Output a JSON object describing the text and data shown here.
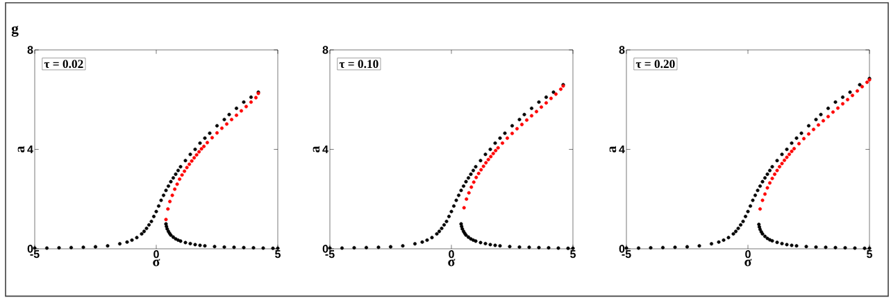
{
  "chart_data": [
    {
      "type": "scatter",
      "title": "g",
      "xlabel": "σ",
      "ylabel": "a",
      "xlim": [
        -5,
        5
      ],
      "ylim": [
        0,
        8
      ],
      "xticks": [
        -5,
        0,
        5
      ],
      "yticks": [
        0,
        4,
        8
      ],
      "marker": "circle",
      "annotations": [
        "τ = 0.02"
      ],
      "series": [
        {
          "type": "scatter",
          "color": "#000000",
          "x": [
            -5,
            -4.5,
            -4,
            -3.5,
            -3,
            -2.5,
            -2,
            -1.5,
            -1.2,
            -1,
            -0.8,
            -0.6,
            -0.5,
            -0.4,
            -0.3,
            -0.2,
            -0.1,
            0,
            0.1,
            0.2,
            0.3,
            0.4,
            0.5,
            0.6,
            0.7,
            0.8,
            0.9,
            1.0,
            1.2,
            1.4,
            1.6,
            1.8,
            2.0,
            2.2,
            2.5,
            2.8,
            3.0,
            3.3,
            3.6,
            3.9,
            4.2
          ],
          "values": [
            0.03,
            0.03,
            0.04,
            0.05,
            0.06,
            0.08,
            0.12,
            0.2,
            0.27,
            0.35,
            0.45,
            0.6,
            0.7,
            0.82,
            0.96,
            1.1,
            1.3,
            1.5,
            1.72,
            1.95,
            2.15,
            2.35,
            2.52,
            2.7,
            2.85,
            3.0,
            3.15,
            3.3,
            3.55,
            3.8,
            4.0,
            4.25,
            4.45,
            4.65,
            4.95,
            5.2,
            5.4,
            5.65,
            5.9,
            6.1,
            6.3
          ]
        },
        {
          "type": "scatter",
          "color": "#000000",
          "x": [
            0.4,
            0.42,
            0.45,
            0.5,
            0.55,
            0.6,
            0.7,
            0.8,
            0.9,
            1.0,
            1.2,
            1.4,
            1.6,
            1.8,
            2.0,
            2.4,
            2.8,
            3.2,
            3.6,
            4.0,
            4.4,
            4.8,
            5.0
          ],
          "values": [
            1.0,
            0.9,
            0.8,
            0.7,
            0.62,
            0.55,
            0.47,
            0.4,
            0.35,
            0.31,
            0.25,
            0.21,
            0.17,
            0.14,
            0.12,
            0.09,
            0.07,
            0.06,
            0.05,
            0.04,
            0.03,
            0.02,
            0.02
          ]
        },
        {
          "type": "scatter",
          "color": "#ff0000",
          "x": [
            0.4,
            0.48,
            0.56,
            0.66,
            0.76,
            0.86,
            0.96,
            1.06,
            1.16,
            1.26,
            1.36,
            1.46,
            1.56,
            1.66,
            1.76,
            1.86,
            1.96,
            2.1,
            2.3,
            2.5,
            2.7,
            2.9,
            3.1,
            3.3,
            3.5,
            3.7,
            3.9,
            4.1,
            4.2
          ],
          "values": [
            1.18,
            1.6,
            1.9,
            2.15,
            2.4,
            2.6,
            2.8,
            2.97,
            3.12,
            3.27,
            3.4,
            3.53,
            3.66,
            3.78,
            3.9,
            4.02,
            4.12,
            4.27,
            4.47,
            4.66,
            4.85,
            5.02,
            5.2,
            5.37,
            5.55,
            5.72,
            5.9,
            6.08,
            6.25
          ]
        }
      ]
    },
    {
      "type": "scatter",
      "xlabel": "σ",
      "ylabel": "a",
      "xlim": [
        -5,
        5
      ],
      "ylim": [
        0,
        8
      ],
      "xticks": [
        -5,
        0,
        5
      ],
      "yticks": [
        0,
        4,
        8
      ],
      "marker": "circle",
      "annotations": [
        "τ = 0.10"
      ],
      "series": [
        {
          "type": "scatter",
          "color": "#000000",
          "x": [
            -5,
            -4.5,
            -4,
            -3.5,
            -3,
            -2.5,
            -2,
            -1.5,
            -1.2,
            -1,
            -0.8,
            -0.6,
            -0.5,
            -0.4,
            -0.3,
            -0.2,
            -0.1,
            0,
            0.1,
            0.2,
            0.3,
            0.4,
            0.5,
            0.6,
            0.7,
            0.8,
            0.9,
            1.0,
            1.2,
            1.4,
            1.6,
            1.8,
            2.0,
            2.2,
            2.5,
            2.8,
            3.0,
            3.3,
            3.6,
            3.9,
            4.2,
            4.6
          ],
          "values": [
            0.03,
            0.03,
            0.04,
            0.05,
            0.06,
            0.08,
            0.12,
            0.2,
            0.27,
            0.35,
            0.45,
            0.6,
            0.7,
            0.82,
            0.96,
            1.1,
            1.3,
            1.5,
            1.72,
            1.95,
            2.15,
            2.35,
            2.52,
            2.7,
            2.85,
            3.0,
            3.15,
            3.3,
            3.55,
            3.8,
            4.0,
            4.25,
            4.45,
            4.65,
            4.95,
            5.2,
            5.4,
            5.65,
            5.9,
            6.1,
            6.3,
            6.6
          ]
        },
        {
          "type": "scatter",
          "color": "#000000",
          "x": [
            0.4,
            0.42,
            0.45,
            0.5,
            0.55,
            0.6,
            0.7,
            0.8,
            0.9,
            1.0,
            1.2,
            1.4,
            1.6,
            1.8,
            2.0,
            2.4,
            2.8,
            3.2,
            3.6,
            4.0,
            4.4,
            4.8,
            5.0
          ],
          "values": [
            1.0,
            0.9,
            0.8,
            0.7,
            0.62,
            0.55,
            0.47,
            0.4,
            0.35,
            0.31,
            0.25,
            0.21,
            0.17,
            0.14,
            0.12,
            0.09,
            0.07,
            0.06,
            0.05,
            0.04,
            0.03,
            0.02,
            0.02
          ]
        },
        {
          "type": "scatter",
          "color": "#ff0000",
          "x": [
            0.52,
            0.62,
            0.72,
            0.82,
            0.92,
            1.02,
            1.12,
            1.22,
            1.32,
            1.42,
            1.52,
            1.62,
            1.72,
            1.82,
            1.92,
            2.1,
            2.3,
            2.5,
            2.7,
            2.9,
            3.1,
            3.3,
            3.5,
            3.7,
            3.9,
            4.1,
            4.3,
            4.5,
            4.6
          ],
          "values": [
            1.65,
            2.0,
            2.25,
            2.48,
            2.68,
            2.87,
            3.03,
            3.18,
            3.32,
            3.46,
            3.59,
            3.71,
            3.83,
            3.95,
            4.06,
            4.25,
            4.45,
            4.64,
            4.83,
            5.0,
            5.18,
            5.35,
            5.52,
            5.7,
            5.87,
            6.05,
            6.22,
            6.42,
            6.55
          ]
        }
      ]
    },
    {
      "type": "scatter",
      "xlabel": "σ",
      "ylabel": "a",
      "xlim": [
        -5,
        5
      ],
      "ylim": [
        0,
        8
      ],
      "xticks": [
        -5,
        0,
        5
      ],
      "yticks": [
        0,
        4,
        8
      ],
      "marker": "circle",
      "annotations": [
        "τ = 0.20"
      ],
      "series": [
        {
          "type": "scatter",
          "color": "#000000",
          "x": [
            -5,
            -4.5,
            -4,
            -3.5,
            -3,
            -2.5,
            -2,
            -1.5,
            -1.2,
            -1,
            -0.8,
            -0.6,
            -0.5,
            -0.4,
            -0.3,
            -0.2,
            -0.1,
            0,
            0.1,
            0.2,
            0.3,
            0.4,
            0.5,
            0.6,
            0.7,
            0.8,
            0.9,
            1.0,
            1.2,
            1.4,
            1.6,
            1.8,
            2.0,
            2.2,
            2.5,
            2.8,
            3.0,
            3.3,
            3.6,
            3.9,
            4.2,
            4.6,
            5.0
          ],
          "values": [
            0.03,
            0.03,
            0.04,
            0.05,
            0.06,
            0.08,
            0.12,
            0.2,
            0.27,
            0.35,
            0.45,
            0.6,
            0.7,
            0.82,
            0.96,
            1.1,
            1.3,
            1.5,
            1.72,
            1.95,
            2.15,
            2.35,
            2.52,
            2.7,
            2.85,
            3.0,
            3.15,
            3.3,
            3.55,
            3.8,
            4.0,
            4.25,
            4.45,
            4.65,
            4.95,
            5.2,
            5.4,
            5.65,
            5.9,
            6.1,
            6.3,
            6.6,
            6.85
          ]
        },
        {
          "type": "scatter",
          "color": "#000000",
          "x": [
            0.45,
            0.47,
            0.5,
            0.55,
            0.6,
            0.7,
            0.8,
            0.9,
            1.0,
            1.2,
            1.4,
            1.6,
            1.8,
            2.0,
            2.4,
            2.8,
            3.2,
            3.6,
            4.0,
            4.4,
            4.8,
            5.0
          ],
          "values": [
            0.98,
            0.88,
            0.78,
            0.68,
            0.6,
            0.5,
            0.42,
            0.36,
            0.32,
            0.26,
            0.21,
            0.17,
            0.14,
            0.12,
            0.09,
            0.07,
            0.06,
            0.05,
            0.04,
            0.03,
            0.02,
            0.02
          ]
        },
        {
          "type": "scatter",
          "color": "#ff0000",
          "x": [
            0.5,
            0.6,
            0.7,
            0.8,
            0.9,
            1.0,
            1.1,
            1.2,
            1.3,
            1.4,
            1.5,
            1.6,
            1.7,
            1.8,
            1.9,
            2.1,
            2.3,
            2.5,
            2.7,
            2.9,
            3.1,
            3.3,
            3.5,
            3.7,
            3.9,
            4.1,
            4.3,
            4.5,
            4.7,
            4.9,
            5.0
          ],
          "values": [
            1.6,
            1.95,
            2.2,
            2.45,
            2.65,
            2.83,
            3.0,
            3.15,
            3.3,
            3.43,
            3.56,
            3.68,
            3.8,
            3.92,
            4.03,
            4.23,
            4.43,
            4.62,
            4.8,
            4.98,
            5.15,
            5.32,
            5.5,
            5.66,
            5.83,
            6.0,
            6.17,
            6.35,
            6.52,
            6.7,
            6.8
          ]
        }
      ]
    }
  ]
}
